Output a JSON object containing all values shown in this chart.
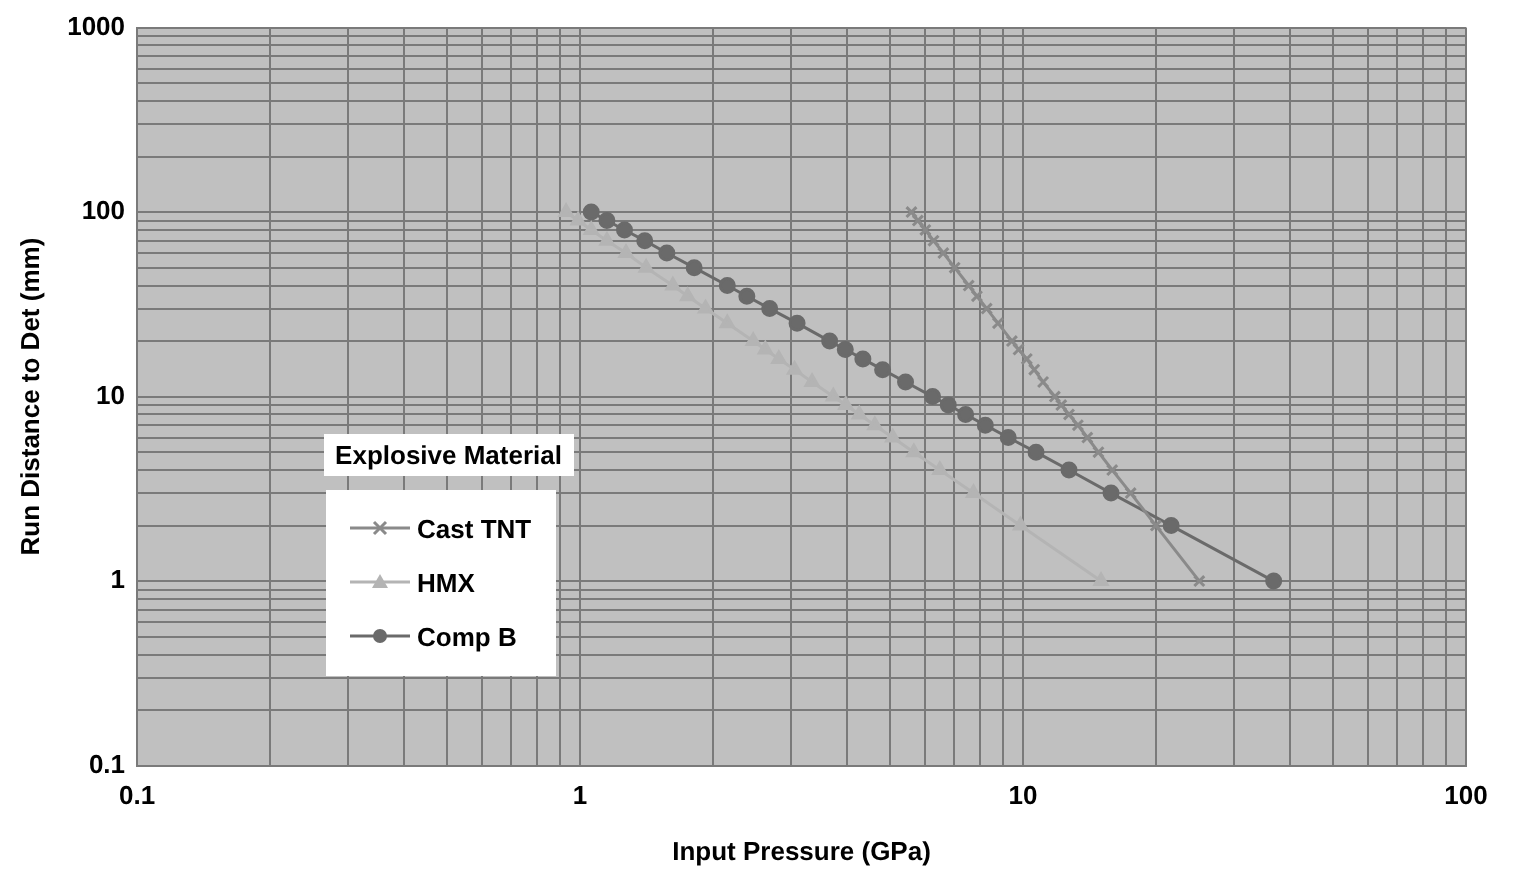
{
  "chart_data": {
    "type": "line",
    "xlabel": "Input Pressure (GPa)",
    "ylabel": "Run Distance to Det (mm)",
    "legend_title": "Explosive Material",
    "legend": "left",
    "log": "xy",
    "grid": true,
    "xlim": [
      0.1,
      100
    ],
    "ylim": [
      0.1,
      1000
    ],
    "xticks": [
      0.1,
      {
        "value": 0.2,
        "label": null
      },
      {
        "value": 0.3,
        "label": null
      },
      {
        "value": 0.4,
        "label": null
      },
      {
        "value": 0.5,
        "label": null
      },
      {
        "value": 0.6,
        "label": null
      },
      {
        "value": 0.7,
        "label": null
      },
      {
        "value": 0.8,
        "label": null
      },
      {
        "value": 0.9,
        "label": null
      },
      1,
      {
        "value": 2,
        "label": null
      },
      {
        "value": 3,
        "label": null
      },
      {
        "value": 4,
        "label": null
      },
      {
        "value": 5,
        "label": null
      },
      {
        "value": 6,
        "label": null
      },
      {
        "value": 7,
        "label": null
      },
      {
        "value": 8,
        "label": null
      },
      {
        "value": 9,
        "label": null
      },
      10,
      {
        "value": 20,
        "label": null
      },
      {
        "value": 30,
        "label": null
      },
      {
        "value": 40,
        "label": null
      },
      {
        "value": 50,
        "label": null
      },
      {
        "value": 60,
        "label": null
      },
      {
        "value": 70,
        "label": null
      },
      {
        "value": 80,
        "label": null
      },
      {
        "value": 90,
        "label": null
      },
      100
    ],
    "yticks": [
      0.1,
      {
        "value": 0.2,
        "label": null
      },
      {
        "value": 0.3,
        "label": null
      },
      {
        "value": 0.4,
        "label": null
      },
      {
        "value": 0.5,
        "label": null
      },
      {
        "value": 0.6,
        "label": null
      },
      {
        "value": 0.7,
        "label": null
      },
      {
        "value": 0.8,
        "label": null
      },
      {
        "value": 0.9,
        "label": null
      },
      1,
      {
        "value": 2,
        "label": null
      },
      {
        "value": 3,
        "label": null
      },
      {
        "value": 4,
        "label": null
      },
      {
        "value": 5,
        "label": null
      },
      {
        "value": 6,
        "label": null
      },
      {
        "value": 7,
        "label": null
      },
      {
        "value": 8,
        "label": null
      },
      {
        "value": 9,
        "label": null
      },
      10,
      {
        "value": 20,
        "label": null
      },
      {
        "value": 30,
        "label": null
      },
      {
        "value": 40,
        "label": null
      },
      {
        "value": 50,
        "label": null
      },
      {
        "value": 60,
        "label": null
      },
      {
        "value": 70,
        "label": null
      },
      {
        "value": 80,
        "label": null
      },
      {
        "value": 90,
        "label": null
      },
      100,
      {
        "value": 200,
        "label": null
      },
      {
        "value": 300,
        "label": null
      },
      {
        "value": 400,
        "label": null
      },
      {
        "value": 500,
        "label": null
      },
      {
        "value": 600,
        "label": null
      },
      {
        "value": 700,
        "label": null
      },
      {
        "value": 800,
        "label": null
      },
      {
        "value": 900,
        "label": null
      },
      1000
    ],
    "series": [
      {
        "name": "Cast TNT",
        "color": "#8a8a8a",
        "marker": "cross",
        "x": [
          25,
          19.95,
          17.5,
          15.9,
          14.8,
          13.97,
          13.3,
          12.7,
          12.2,
          11.8,
          11.1,
          10.6,
          10.2,
          9.77,
          9.44,
          8.78,
          8.28,
          7.87,
          7.54,
          7.01,
          6.61,
          6.28,
          6.02,
          5.79,
          5.6
        ],
        "values": [
          1,
          2,
          3,
          4,
          5,
          6,
          7,
          8,
          9,
          10,
          12,
          14,
          16,
          18,
          20,
          25,
          30,
          35,
          40,
          50,
          60,
          70,
          80,
          90,
          100
        ]
      },
      {
        "name": "HMX",
        "color": "#b4b4b4",
        "marker": "triangle",
        "x": [
          15,
          9.87,
          7.73,
          6.49,
          5.67,
          5.08,
          4.63,
          4.27,
          3.98,
          3.73,
          3.34,
          3.05,
          2.81,
          2.62,
          2.46,
          2.15,
          1.92,
          1.75,
          1.62,
          1.41,
          1.27,
          1.15,
          1.06,
          0.99,
          0.93
        ],
        "values": [
          1,
          2,
          3,
          4,
          5,
          6,
          7,
          8,
          9,
          10,
          12,
          14,
          16,
          18,
          20,
          25,
          30,
          35,
          40,
          50,
          60,
          70,
          80,
          90,
          100
        ]
      },
      {
        "name": "Comp B",
        "color": "#6a6a6a",
        "marker": "circle",
        "x": [
          36.8,
          21.6,
          15.8,
          12.7,
          10.7,
          9.26,
          8.22,
          7.42,
          6.78,
          6.25,
          5.43,
          4.82,
          4.35,
          3.97,
          3.66,
          3.09,
          2.68,
          2.38,
          2.15,
          1.81,
          1.57,
          1.4,
          1.26,
          1.15,
          1.06
        ],
        "values": [
          1,
          2,
          3,
          4,
          5,
          6,
          7,
          8,
          9,
          10,
          12,
          14,
          16,
          18,
          20,
          25,
          30,
          35,
          40,
          50,
          60,
          70,
          80,
          90,
          100
        ]
      }
    ]
  }
}
